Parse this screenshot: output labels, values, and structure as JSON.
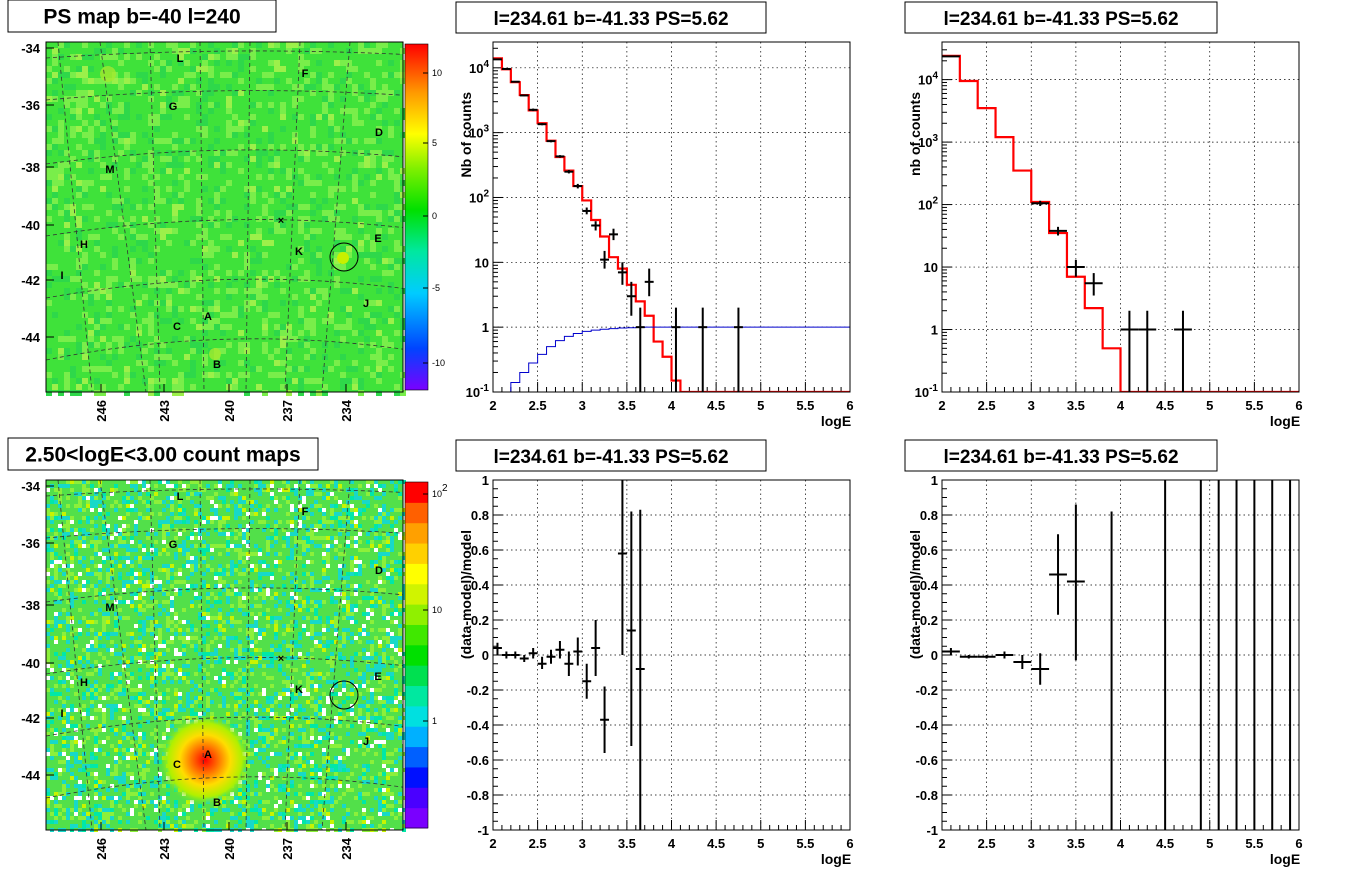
{
  "chart_data": [
    {
      "type": "heatmap",
      "title": "PS map b=-40 l=240",
      "x_ticks": [
        "246",
        "243",
        "240",
        "237",
        "234"
      ],
      "y_ticks": [
        "-34",
        "-36",
        "-38",
        "-40",
        "-42",
        "-44"
      ],
      "colorbar_ticks": [
        "10",
        "5",
        "0",
        "-5",
        "-10"
      ],
      "zlim": [
        -12,
        12
      ],
      "source_labels": [
        "L",
        "F",
        "G",
        "D",
        "M",
        "E",
        "H",
        "K",
        "I",
        "J",
        "A",
        "C",
        "B"
      ],
      "marked_source": {
        "l": 234.61,
        "b": -41.33
      }
    },
    {
      "type": "line",
      "title": "l=234.61 b=-41.33 PS=5.62",
      "xlabel": "logE",
      "ylabel": "Nb of counts",
      "log_y": true,
      "xlim": [
        2,
        6
      ],
      "ylim": [
        0.1,
        25000
      ],
      "x_ticks": [
        "2",
        "2.5",
        "3",
        "3.5",
        "4",
        "4.5",
        "5",
        "5.5",
        "6"
      ],
      "y_ticks": [
        "10^-1",
        "1",
        "10",
        "10^2",
        "10^3",
        "10^4"
      ],
      "series": [
        {
          "color": "#ff0000",
          "style": "step",
          "bin_width": 0.1,
          "x": [
            2.0,
            2.1,
            2.2,
            2.3,
            2.4,
            2.5,
            2.6,
            2.7,
            2.8,
            2.9,
            3.0,
            3.1,
            3.2,
            3.3,
            3.4,
            3.5,
            3.6,
            3.7,
            3.8,
            3.9,
            4.0,
            4.1
          ],
          "y": [
            14000,
            9500,
            6000,
            3800,
            2200,
            1400,
            750,
            420,
            260,
            150,
            90,
            45,
            25,
            12,
            8,
            4.5,
            2.5,
            1.5,
            0.6,
            0.35,
            0.15,
            0.1
          ]
        },
        {
          "color": "#0000cc",
          "style": "step",
          "bin_width": 0.1,
          "x": [
            2.1,
            2.2,
            2.3,
            2.4,
            2.5,
            2.6,
            2.7,
            2.8,
            2.9,
            3.0,
            3.1,
            3.2,
            3.3,
            3.4,
            3.5,
            3.6,
            3.7,
            3.8,
            3.9,
            4.0,
            4.1
          ],
          "y": [
            0.1,
            0.14,
            0.2,
            0.28,
            0.38,
            0.5,
            0.62,
            0.72,
            0.8,
            0.86,
            0.9,
            0.93,
            0.95,
            0.97,
            0.98,
            0.99,
            1.0,
            1.0,
            1.0,
            1.0,
            1.0
          ]
        },
        {
          "color": "#000000",
          "style": "errorbars",
          "points": [
            {
              "x": 2.05,
              "y": 13500,
              "dx": 0.05,
              "ylo": 13200,
              "yhi": 13800
            },
            {
              "x": 2.15,
              "y": 9600,
              "dx": 0.05,
              "ylo": 9400,
              "yhi": 9800
            },
            {
              "x": 2.25,
              "y": 6100,
              "dx": 0.05,
              "ylo": 5950,
              "yhi": 6250
            },
            {
              "x": 2.35,
              "y": 3750,
              "dx": 0.05,
              "ylo": 3650,
              "yhi": 3850
            },
            {
              "x": 2.45,
              "y": 2250,
              "dx": 0.05,
              "ylo": 2150,
              "yhi": 2350
            },
            {
              "x": 2.55,
              "y": 1350,
              "dx": 0.05,
              "ylo": 1300,
              "yhi": 1400
            },
            {
              "x": 2.65,
              "y": 740,
              "dx": 0.05,
              "ylo": 710,
              "yhi": 770
            },
            {
              "x": 2.75,
              "y": 430,
              "dx": 0.05,
              "ylo": 410,
              "yhi": 450
            },
            {
              "x": 2.85,
              "y": 250,
              "dx": 0.05,
              "ylo": 235,
              "yhi": 265
            },
            {
              "x": 2.95,
              "y": 150,
              "dx": 0.05,
              "ylo": 138,
              "yhi": 162
            },
            {
              "x": 3.05,
              "y": 62,
              "dx": 0.05,
              "ylo": 55,
              "yhi": 70
            },
            {
              "x": 3.15,
              "y": 37,
              "dx": 0.05,
              "ylo": 31,
              "yhi": 43
            },
            {
              "x": 3.25,
              "y": 11,
              "dx": 0.05,
              "ylo": 8,
              "yhi": 15
            },
            {
              "x": 3.35,
              "y": 27,
              "dx": 0.05,
              "ylo": 22,
              "yhi": 33
            },
            {
              "x": 3.45,
              "y": 7,
              "dx": 0.05,
              "ylo": 4.5,
              "yhi": 10
            },
            {
              "x": 3.55,
              "y": 3,
              "dx": 0.05,
              "ylo": 1.5,
              "yhi": 5
            },
            {
              "x": 3.65,
              "y": 1,
              "dx": 0.05,
              "ylo": 0.1,
              "yhi": 2
            },
            {
              "x": 3.75,
              "y": 5,
              "dx": 0.05,
              "ylo": 3,
              "yhi": 8
            },
            {
              "x": 4.05,
              "y": 1,
              "dx": 0.05,
              "ylo": 0.1,
              "yhi": 2
            },
            {
              "x": 4.35,
              "y": 1,
              "dx": 0.05,
              "ylo": 0.1,
              "yhi": 2
            },
            {
              "x": 4.75,
              "y": 1,
              "dx": 0.05,
              "ylo": 0.1,
              "yhi": 2
            }
          ]
        }
      ]
    },
    {
      "type": "line",
      "title": "l=234.61 b=-41.33 PS=5.62",
      "xlabel": "logE",
      "ylabel": "nb of counts",
      "log_y": true,
      "xlim": [
        2,
        6
      ],
      "ylim": [
        0.1,
        40000
      ],
      "x_ticks": [
        "2",
        "2.5",
        "3",
        "3.5",
        "4",
        "4.5",
        "5",
        "5.5",
        "6"
      ],
      "y_ticks": [
        "10^-1",
        "1",
        "10",
        "10^2",
        "10^3",
        "10^4"
      ],
      "series": [
        {
          "color": "#ff0000",
          "style": "step",
          "bin_width": 0.2,
          "x": [
            2.0,
            2.2,
            2.4,
            2.6,
            2.8,
            3.0,
            3.2,
            3.4,
            3.6,
            3.8,
            4.0
          ],
          "y": [
            24000,
            9500,
            3500,
            1200,
            350,
            110,
            35,
            7,
            2.2,
            0.5,
            0.1
          ]
        },
        {
          "color": "#000000",
          "style": "errorbars",
          "points": [
            {
              "x": 2.1,
              "y": 23500,
              "dx": 0.1,
              "ylo": 23200,
              "yhi": 23800
            },
            {
              "x": 3.1,
              "y": 105,
              "dx": 0.1,
              "ylo": 95,
              "yhi": 115
            },
            {
              "x": 3.3,
              "y": 38,
              "dx": 0.1,
              "ylo": 32,
              "yhi": 44
            },
            {
              "x": 3.5,
              "y": 10,
              "dx": 0.1,
              "ylo": 7,
              "yhi": 13
            },
            {
              "x": 3.7,
              "y": 5.5,
              "dx": 0.1,
              "ylo": 3.5,
              "yhi": 8
            },
            {
              "x": 4.1,
              "y": 1,
              "dx": 0.1,
              "ylo": 0.1,
              "yhi": 2
            },
            {
              "x": 4.3,
              "y": 1,
              "dx": 0.1,
              "ylo": 0.1,
              "yhi": 2
            },
            {
              "x": 4.7,
              "y": 1,
              "dx": 0.1,
              "ylo": 0.1,
              "yhi": 2
            }
          ]
        }
      ]
    },
    {
      "type": "heatmap",
      "title": "2.50<logE<3.00 count maps",
      "x_ticks": [
        "246",
        "243",
        "240",
        "237",
        "234"
      ],
      "y_ticks": [
        "-34",
        "-36",
        "-38",
        "-40",
        "-42",
        "-44"
      ],
      "colorbar_ticks": [
        "10^2",
        "10",
        "1"
      ],
      "log_z": true,
      "source_labels": [
        "L",
        "F",
        "G",
        "D",
        "M",
        "E",
        "H",
        "K",
        "I",
        "J",
        "A",
        "C",
        "B"
      ],
      "bright_source": "A",
      "marked_source": {
        "l": 234.61,
        "b": -41.33
      }
    },
    {
      "type": "scatter",
      "title": "l=234.61 b=-41.33 PS=5.62",
      "xlabel": "logE",
      "ylabel": "(data-model)/model",
      "xlim": [
        2,
        6
      ],
      "ylim": [
        -1,
        1
      ],
      "x_ticks": [
        "2",
        "2.5",
        "3",
        "3.5",
        "4",
        "4.5",
        "5",
        "5.5",
        "6"
      ],
      "y_ticks": [
        "1",
        "0.8",
        "0.6",
        "0.4",
        "0.2",
        "0",
        "-0.2",
        "-0.4",
        "-0.6",
        "-0.8",
        "-1"
      ],
      "points": [
        {
          "x": 2.05,
          "y": 0.04,
          "dx": 0.05,
          "ylo": 0.0,
          "yhi": 0.07
        },
        {
          "x": 2.15,
          "y": 0.0,
          "dx": 0.05,
          "ylo": -0.02,
          "yhi": 0.02
        },
        {
          "x": 2.25,
          "y": 0.0,
          "dx": 0.05,
          "ylo": -0.02,
          "yhi": 0.02
        },
        {
          "x": 2.35,
          "y": -0.02,
          "dx": 0.05,
          "ylo": -0.04,
          "yhi": 0.0
        },
        {
          "x": 2.45,
          "y": 0.01,
          "dx": 0.05,
          "ylo": -0.02,
          "yhi": 0.04
        },
        {
          "x": 2.55,
          "y": -0.05,
          "dx": 0.05,
          "ylo": -0.08,
          "yhi": -0.01
        },
        {
          "x": 2.65,
          "y": -0.01,
          "dx": 0.05,
          "ylo": -0.05,
          "yhi": 0.03
        },
        {
          "x": 2.75,
          "y": 0.03,
          "dx": 0.05,
          "ylo": -0.02,
          "yhi": 0.08
        },
        {
          "x": 2.85,
          "y": -0.05,
          "dx": 0.05,
          "ylo": -0.12,
          "yhi": 0.02
        },
        {
          "x": 2.95,
          "y": 0.02,
          "dx": 0.05,
          "ylo": -0.06,
          "yhi": 0.1
        },
        {
          "x": 3.05,
          "y": -0.15,
          "dx": 0.05,
          "ylo": -0.25,
          "yhi": -0.05
        },
        {
          "x": 3.15,
          "y": 0.04,
          "dx": 0.05,
          "ylo": -0.12,
          "yhi": 0.2
        },
        {
          "x": 3.25,
          "y": -0.37,
          "dx": 0.05,
          "ylo": -0.56,
          "yhi": -0.18
        },
        {
          "x": 3.45,
          "y": 0.58,
          "dx": 0.05,
          "ylo": 0.0,
          "yhi": 1.0
        },
        {
          "x": 3.55,
          "y": 0.14,
          "dx": 0.05,
          "ylo": -0.52,
          "yhi": 0.82
        },
        {
          "x": 3.65,
          "y": -0.08,
          "dx": 0.05,
          "ylo": -1.0,
          "yhi": 0.83
        }
      ]
    },
    {
      "type": "scatter",
      "title": "l=234.61 b=-41.33 PS=5.62",
      "xlabel": "logE",
      "ylabel": "(data-model)/model",
      "xlim": [
        2,
        6
      ],
      "ylim": [
        -1,
        1
      ],
      "x_ticks": [
        "2",
        "2.5",
        "3",
        "3.5",
        "4",
        "4.5",
        "5",
        "5.5",
        "6"
      ],
      "y_ticks": [
        "1",
        "0.8",
        "0.6",
        "0.4",
        "0.2",
        "0",
        "-0.2",
        "-0.4",
        "-0.6",
        "-0.8",
        "-1"
      ],
      "points": [
        {
          "x": 2.1,
          "y": 0.02,
          "dx": 0.1,
          "ylo": 0.0,
          "yhi": 0.04
        },
        {
          "x": 2.3,
          "y": -0.01,
          "dx": 0.1,
          "ylo": -0.02,
          "yhi": 0.0
        },
        {
          "x": 2.5,
          "y": -0.01,
          "dx": 0.1,
          "ylo": -0.02,
          "yhi": 0.0
        },
        {
          "x": 2.7,
          "y": 0.0,
          "dx": 0.1,
          "ylo": -0.02,
          "yhi": 0.02
        },
        {
          "x": 2.9,
          "y": -0.04,
          "dx": 0.1,
          "ylo": -0.08,
          "yhi": 0.0
        },
        {
          "x": 3.1,
          "y": -0.08,
          "dx": 0.1,
          "ylo": -0.17,
          "yhi": 0.01
        },
        {
          "x": 3.3,
          "y": 0.46,
          "dx": 0.1,
          "ylo": 0.23,
          "yhi": 0.69
        },
        {
          "x": 3.5,
          "y": 0.42,
          "dx": 0.1,
          "ylo": -0.03,
          "yhi": 0.86
        },
        {
          "x": 3.9,
          "y": -1.0,
          "dx": 0.0,
          "ylo": -1.0,
          "yhi": 0.82
        },
        {
          "x": 4.5,
          "y": -1.0,
          "dx": 0.0,
          "ylo": -1.0,
          "yhi": 1.0
        },
        {
          "x": 4.9,
          "y": -1.0,
          "dx": 0.0,
          "ylo": -1.0,
          "yhi": 1.0
        },
        {
          "x": 5.1,
          "y": -1.0,
          "dx": 0.0,
          "ylo": -1.0,
          "yhi": 1.0
        },
        {
          "x": 5.3,
          "y": -1.0,
          "dx": 0.0,
          "ylo": -1.0,
          "yhi": 1.0
        },
        {
          "x": 5.5,
          "y": -1.0,
          "dx": 0.0,
          "ylo": -1.0,
          "yhi": 1.0
        },
        {
          "x": 5.7,
          "y": -1.0,
          "dx": 0.0,
          "ylo": -1.0,
          "yhi": 1.0
        },
        {
          "x": 5.9,
          "y": -1.0,
          "dx": 0.0,
          "ylo": -1.0,
          "yhi": 1.0
        }
      ]
    }
  ]
}
